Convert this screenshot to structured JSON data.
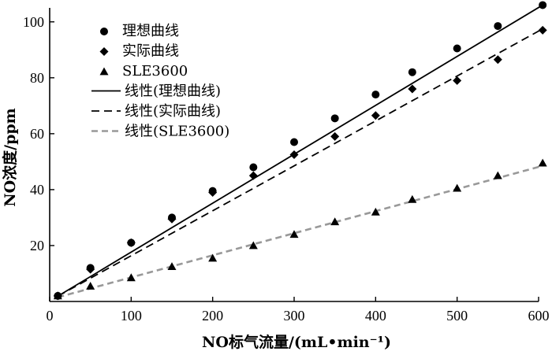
{
  "chart_data": {
    "type": "scatter",
    "xlabel": "NO标气流量/(mL•min⁻¹)",
    "ylabel": "NO浓度/ppm",
    "xlim": [
      0,
      600
    ],
    "ylim": [
      0,
      105
    ],
    "xticks": [
      0,
      100,
      200,
      300,
      400,
      500,
      600
    ],
    "yticks": [
      20,
      40,
      60,
      80,
      100
    ],
    "grid": false,
    "legend_position": "top-left",
    "series": [
      {
        "name": "理想曲线",
        "kind": "points",
        "marker": "circle",
        "color": "#000000",
        "x": [
          10,
          50,
          100,
          150,
          200,
          250,
          300,
          350,
          400,
          445,
          500,
          550,
          605
        ],
        "y": [
          2,
          12,
          21,
          30,
          39.5,
          48,
          57,
          65.5,
          74,
          82,
          90.5,
          98.5,
          106
        ]
      },
      {
        "name": "实际曲线",
        "kind": "points",
        "marker": "diamond",
        "color": "#000000",
        "x": [
          10,
          50,
          100,
          150,
          200,
          250,
          300,
          350,
          400,
          445,
          500,
          550,
          605
        ],
        "y": [
          2,
          11.5,
          21,
          29.5,
          39,
          45,
          52.5,
          59,
          66.5,
          76,
          79,
          86.5,
          97
        ]
      },
      {
        "name": "SLE3600",
        "kind": "points",
        "marker": "triangle",
        "color": "#000000",
        "x": [
          10,
          50,
          100,
          150,
          200,
          250,
          300,
          350,
          400,
          445,
          500,
          550,
          605
        ],
        "y": [
          2,
          5.5,
          8.5,
          12.5,
          15.5,
          20,
          24,
          28.5,
          32,
          36.5,
          40.5,
          45,
          49.5
        ]
      },
      {
        "name": "线性(理想曲线)",
        "kind": "trendline",
        "style": "solid",
        "color": "#000000",
        "x": [
          10,
          605
        ],
        "y": [
          1.9,
          106
        ]
      },
      {
        "name": "线性(实际曲线)",
        "kind": "trendline",
        "style": "dashed",
        "color": "#000000",
        "x": [
          10,
          605
        ],
        "y": [
          1.9,
          97.5
        ]
      },
      {
        "name": "线性(SLE3600)",
        "kind": "trendline",
        "style": "dashed",
        "color": "#999999",
        "x": [
          10,
          605
        ],
        "y": [
          1.5,
          48.5
        ]
      }
    ]
  }
}
